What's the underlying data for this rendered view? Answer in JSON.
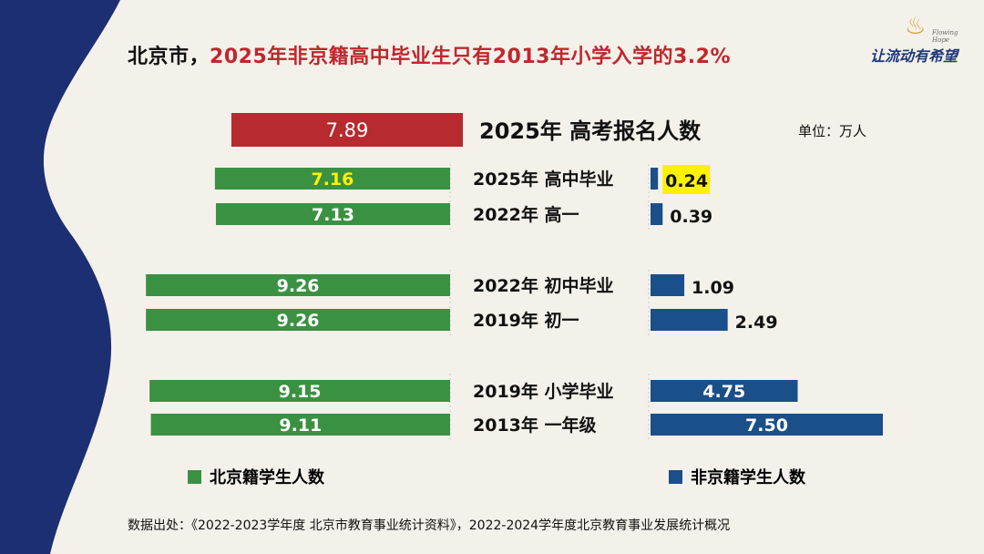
{
  "title": {
    "prefix": "北京市，",
    "highlight": "2025年非京籍高中毕业生只有2013年小学入学的3.2%"
  },
  "logo": {
    "small_text": "Flowing Hope",
    "text": "让流动有希望"
  },
  "chart_data": {
    "type": "bar",
    "subtype": "diverging-horizontal",
    "unit_label": "单位：万人",
    "header": {
      "label": "2025年 高考报名人数",
      "value": 7.89,
      "value_label": "7.89",
      "color": "#b72a2f"
    },
    "categories": [
      "2025年 高中毕业",
      "2022年 高一",
      "2022年 初中毕业",
      "2019年 初一",
      "2019年 小学毕业",
      "2013年 一年级"
    ],
    "series": [
      {
        "name": "北京籍学生人数",
        "side": "left",
        "color": "#3a9142",
        "values": [
          7.16,
          7.13,
          9.26,
          9.26,
          9.15,
          9.11
        ],
        "labels": [
          "7.16",
          "7.13",
          "9.26",
          "9.26",
          "9.15",
          "9.11"
        ]
      },
      {
        "name": "非京籍学生人数",
        "side": "right",
        "color": "#1b4f8a",
        "values": [
          0.24,
          0.39,
          1.09,
          2.49,
          4.75,
          7.5
        ],
        "labels": [
          "0.24",
          "0.39",
          "1.09",
          "2.49",
          "4.75",
          "7.50"
        ]
      }
    ],
    "highlight_label_index": 0,
    "highlight_color": "#fff200"
  },
  "legend": {
    "left": "北京籍学生人数",
    "right": "非京籍学生人数"
  },
  "source": "数据出处：《2022-2023学年度 北京市教育事业统计资料》，2022-2024学年度北京教育事业发展统计概况"
}
